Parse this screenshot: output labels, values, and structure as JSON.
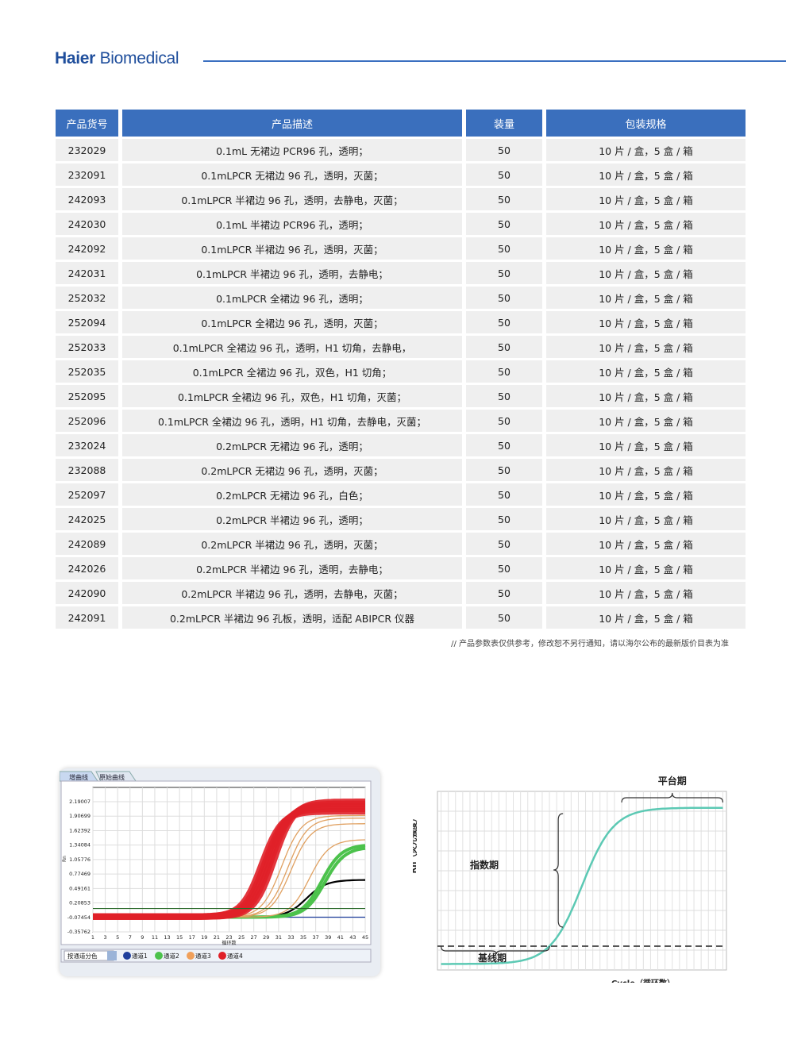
{
  "brand": {
    "logo_bold": "Haier",
    "logo_rest": " Biomedical"
  },
  "table": {
    "headers": [
      "产品货号",
      "产品描述",
      "装量",
      "包装规格"
    ],
    "rows": [
      [
        "232029",
        "0.1mL 无裙边 PCR96 孔，透明；",
        "50",
        "10 片 / 盒，5 盒 / 箱"
      ],
      [
        "232091",
        "0.1mLPCR 无裙边 96 孔，透明，灭菌；",
        "50",
        "10 片 / 盒，5 盒 / 箱"
      ],
      [
        "242093",
        "0.1mLPCR 半裙边 96 孔，透明，去静电，灭菌；",
        "50",
        "10 片 / 盒，5 盒 / 箱"
      ],
      [
        "242030",
        "0.1mL 半裙边 PCR96 孔，透明；",
        "50",
        "10 片 / 盒，5 盒 / 箱"
      ],
      [
        "242092",
        "0.1mLPCR 半裙边 96 孔，透明，灭菌；",
        "50",
        "10 片 / 盒，5 盒 / 箱"
      ],
      [
        "242031",
        "0.1mLPCR 半裙边 96 孔，透明，去静电；",
        "50",
        "10 片 / 盒，5 盒 / 箱"
      ],
      [
        "252032",
        "0.1mLPCR 全裙边 96 孔，透明；",
        "50",
        "10 片 / 盒，5 盒 / 箱"
      ],
      [
        "252094",
        "0.1mLPCR 全裙边 96 孔，透明，灭菌；",
        "50",
        "10 片 / 盒，5 盒 / 箱"
      ],
      [
        "252033",
        "0.1mLPCR 全裙边 96 孔，透明，H1 切角，去静电，",
        "50",
        "10 片 / 盒，5 盒 / 箱"
      ],
      [
        "252035",
        "0.1mLPCR 全裙边 96 孔，双色，H1 切角；",
        "50",
        "10 片 / 盒，5 盒 / 箱"
      ],
      [
        "252095",
        "0.1mLPCR 全裙边 96 孔，双色，H1 切角，灭菌；",
        "50",
        "10 片 / 盒，5 盒 / 箱"
      ],
      [
        "252096",
        "0.1mLPCR 全裙边 96 孔，透明，H1 切角，去静电，灭菌；",
        "50",
        "10 片 / 盒，5 盒 / 箱"
      ],
      [
        "232024",
        "0.2mLPCR 无裙边 96 孔，透明；",
        "50",
        "10 片 / 盒，5 盒 / 箱"
      ],
      [
        "232088",
        "0.2mLPCR 无裙边 96 孔，透明，灭菌；",
        "50",
        "10 片 / 盒，5 盒 / 箱"
      ],
      [
        "252097",
        "0.2mLPCR 无裙边 96 孔，白色；",
        "50",
        "10 片 / 盒，5 盒 / 箱"
      ],
      [
        "242025",
        "0.2mLPCR 半裙边 96 孔，透明；",
        "50",
        "10 片 / 盒，5 盒 / 箱"
      ],
      [
        "242089",
        "0.2mLPCR 半裙边 96 孔，透明，灭菌；",
        "50",
        "10 片 / 盒，5 盒 / 箱"
      ],
      [
        "242026",
        "0.2mLPCR 半裙边 96 孔，透明，去静电；",
        "50",
        "10 片 / 盒，5 盒 / 箱"
      ],
      [
        "242090",
        "0.2mLPCR 半裙边 96 孔，透明，去静电，灭菌；",
        "50",
        "10 片 / 盒，5 盒 / 箱"
      ],
      [
        "242091",
        "0.2mLPCR 半裙边 96 孔板，透明，适配 ABIPCR 仪器",
        "50",
        "10 片 / 盒，5 盒 / 箱"
      ]
    ]
  },
  "note": "// 产品参数表仅供参考，修改恕不另行通知，请以海尔公布的最新版价目表为准",
  "chart_data": [
    {
      "type": "line",
      "tabs": [
        "增曲线",
        "原始曲线"
      ],
      "ylabel": "Rn",
      "xlabel": "循环数",
      "yticks": [
        "2.19007",
        "1.90699",
        "1.62392",
        "1.34084",
        "1.05776",
        "0.77469",
        "0.49161",
        "0.20853",
        "-0.07454",
        "-0.35762"
      ],
      "ylim": [
        -0.35762,
        2.19007
      ],
      "xticks": [
        1,
        3,
        5,
        7,
        9,
        11,
        13,
        15,
        17,
        19,
        21,
        23,
        25,
        27,
        29,
        31,
        33,
        35,
        37,
        39,
        41,
        43,
        45
      ],
      "xlim": [
        1,
        45
      ],
      "grid": true,
      "threshold": 0.1,
      "color_mode": "按通道分色",
      "legend": [
        {
          "name": "通道1",
          "color": "#1f3f9c"
        },
        {
          "name": "通道2",
          "color": "#4cc24c"
        },
        {
          "name": "通道3",
          "color": "#f0a05a"
        },
        {
          "name": "通道4",
          "color": "#e02028"
        }
      ],
      "series": [
        {
          "channel": "通道4",
          "color": "#e02028",
          "baseline": -0.06,
          "plateaus": [
            2.0,
            2.05,
            2.1,
            2.15,
            2.19
          ],
          "midpoints": [
            28.3,
            28.8,
            29.3,
            29.8,
            30.3
          ]
        },
        {
          "channel": "通道3",
          "color": "#e0a060",
          "baseline": -0.07,
          "plateaus": [
            1.92,
            1.87,
            1.76,
            1.45
          ],
          "midpoints": [
            31.5,
            32.5,
            33,
            36
          ]
        },
        {
          "channel": "通道2",
          "color": "#4cc24c",
          "baseline": -0.07,
          "plateaus": [
            1.35,
            1.3
          ],
          "midpoints": [
            38,
            38.5
          ]
        },
        {
          "channel": "",
          "color": "#000000",
          "baseline": -0.07,
          "plateaus": [
            0.66
          ],
          "midpoints": [
            35.5
          ]
        },
        {
          "channel": "通道1",
          "color": "#1f3f9c",
          "baseline": -0.07,
          "plateaus": [
            -0.07
          ],
          "midpoints": [
            30
          ]
        }
      ]
    },
    {
      "type": "line",
      "ylabel": "Rn（荧光强度）",
      "xlabel": "Cycle（循环数）",
      "xlim": [
        1,
        40
      ],
      "grid": true,
      "curve_color": "#5cc9b4",
      "baseline_level": 0.02,
      "plateau_level": 0.545,
      "midpoint_cycle": 20.5,
      "threshold_level": 0.08,
      "annotations": [
        "平台期",
        "指数期",
        "基线期"
      ]
    }
  ]
}
